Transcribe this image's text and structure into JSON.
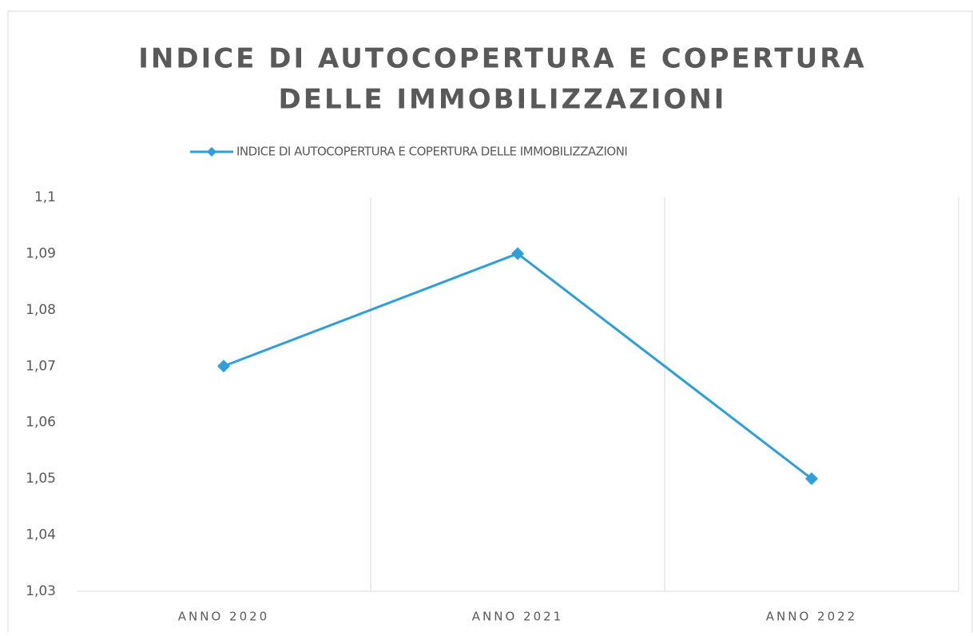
{
  "chart_data": {
    "type": "line",
    "title": [
      "INDICE DI AUTOCOPERTURA E COPERTURA",
      "DELLE IMMOBILIZZAZIONI"
    ],
    "categories": [
      "ANNO 2020",
      "ANNO 2021",
      "ANNO 2022"
    ],
    "series": [
      {
        "name": "INDICE DI AUTOCOPERTURA E COPERTURA DELLE IMMOBILIZZAZIONI",
        "color": "#2e9fd9",
        "values": [
          1.07,
          1.09,
          1.05
        ]
      }
    ],
    "ylim": [
      1.03,
      1.1
    ],
    "yticks": [
      {
        "value": 1.03,
        "label": "1,03"
      },
      {
        "value": 1.04,
        "label": "1,04"
      },
      {
        "value": 1.05,
        "label": "1,05"
      },
      {
        "value": 1.06,
        "label": "1,06"
      },
      {
        "value": 1.07,
        "label": "1,07"
      },
      {
        "value": 1.08,
        "label": "1,08"
      },
      {
        "value": 1.09,
        "label": "1,09"
      },
      {
        "value": 1.1,
        "label": "1,1"
      }
    ],
    "legend": "top"
  }
}
